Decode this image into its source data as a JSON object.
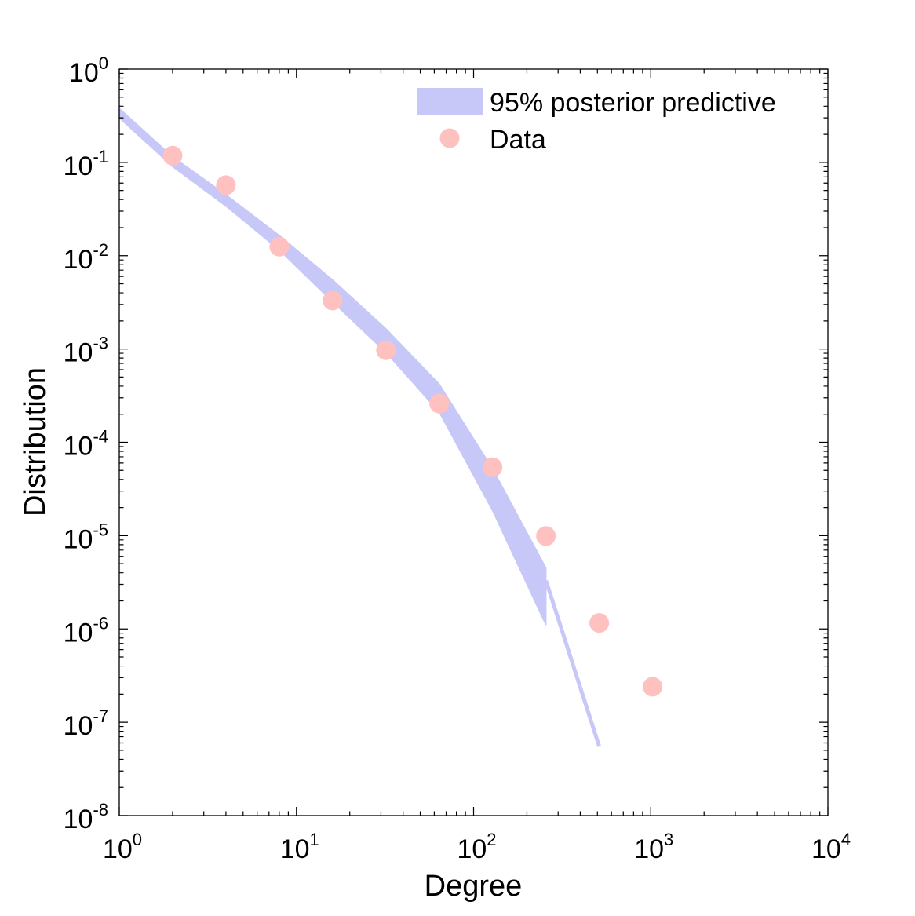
{
  "chart_data": {
    "type": "scatter",
    "title": "",
    "xlabel": "Degree",
    "ylabel": "Distribution",
    "xscale": "log",
    "yscale": "log",
    "xlim": [
      1,
      10000
    ],
    "ylim": [
      1e-08,
      1
    ],
    "x_ticks": [
      {
        "base": "10",
        "exp": "0",
        "value": 1
      },
      {
        "base": "10",
        "exp": "1",
        "value": 10
      },
      {
        "base": "10",
        "exp": "2",
        "value": 100
      },
      {
        "base": "10",
        "exp": "3",
        "value": 1000
      },
      {
        "base": "10",
        "exp": "4",
        "value": 10000
      }
    ],
    "y_ticks": [
      {
        "base": "10",
        "exp": "0",
        "value": 1
      },
      {
        "base": "10",
        "exp": "-1",
        "value": 0.1
      },
      {
        "base": "10",
        "exp": "-2",
        "value": 0.01
      },
      {
        "base": "10",
        "exp": "-3",
        "value": 0.001
      },
      {
        "base": "10",
        "exp": "-4",
        "value": 0.0001
      },
      {
        "base": "10",
        "exp": "-5",
        "value": 1e-05
      },
      {
        "base": "10",
        "exp": "-6",
        "value": 1e-06
      },
      {
        "base": "10",
        "exp": "-7",
        "value": 1e-07
      },
      {
        "base": "10",
        "exp": "-8",
        "value": 1e-08
      }
    ],
    "legend": {
      "position": "top-right",
      "entries": [
        {
          "label": "95% posterior predictive",
          "kind": "band"
        },
        {
          "label": "Data",
          "kind": "marker"
        }
      ]
    },
    "series": [
      {
        "name": "95% posterior predictive",
        "kind": "band",
        "color": "#c8c8f8",
        "x": [
          1,
          2,
          4,
          8,
          16,
          32,
          64,
          128,
          256
        ],
        "upper": [
          0.38,
          0.115,
          0.045,
          0.0165,
          0.0055,
          0.00165,
          0.00042,
          5.2e-05,
          4.5e-06
        ],
        "lower": [
          0.3,
          0.09,
          0.034,
          0.0115,
          0.0032,
          0.00092,
          0.00021,
          1.85e-05,
          1.1e-06
        ]
      },
      {
        "name": "95% posterior predictive (tail)",
        "kind": "line",
        "color": "#c8c8f8",
        "x": [
          256,
          512
        ],
        "y": [
          3.3e-06,
          5.5e-08
        ]
      },
      {
        "name": "Data",
        "kind": "scatter",
        "color": "#ffc0c0",
        "x": [
          2,
          4,
          8,
          16,
          32,
          64,
          128,
          256,
          512,
          1024
        ],
        "y": [
          0.118,
          0.057,
          0.0125,
          0.0033,
          0.00097,
          0.00026,
          5.4e-05,
          9.9e-06,
          1.16e-06,
          2.4e-07
        ]
      }
    ]
  }
}
